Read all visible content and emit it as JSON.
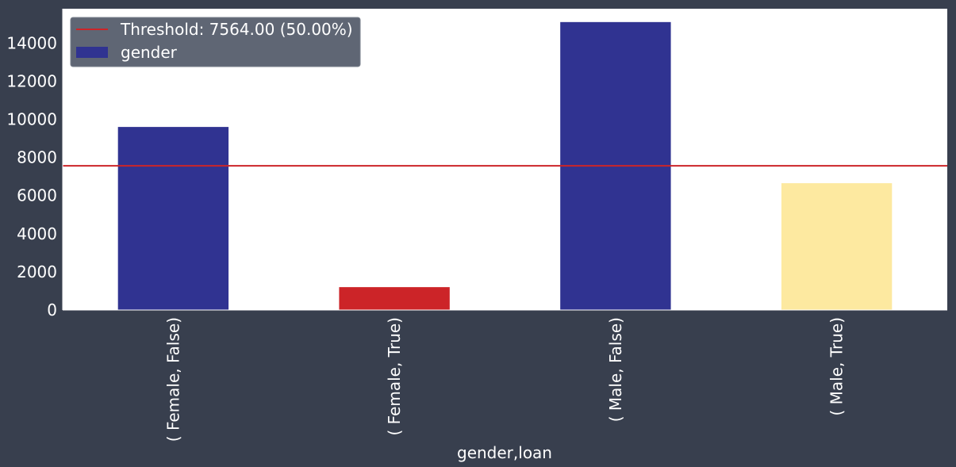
{
  "chart_data": {
    "type": "bar",
    "title": "",
    "xlabel": "gender,loan",
    "ylabel": "",
    "categories": [
      "( Female, False)",
      "( Female, True)",
      "( Male, False)",
      "( Male, True)"
    ],
    "series": [
      {
        "name": "gender",
        "values": [
          9600,
          1200,
          15100,
          6650
        ],
        "colors": [
          "#303391",
          "#cc2428",
          "#303391",
          "#fde9a0"
        ]
      }
    ],
    "ylim": [
      0,
      15800
    ],
    "yticks": [
      0,
      2000,
      4000,
      6000,
      8000,
      10000,
      12000,
      14000
    ],
    "threshold": {
      "value": 7564,
      "label": "Threshold: 7564.00 (50.00%)",
      "color": "#cc2428"
    },
    "legend": {
      "placement": "top-left",
      "entries": [
        {
          "label": "Threshold: 7564.00 (50.00%)",
          "kind": "line",
          "color": "#cc2428"
        },
        {
          "label": "gender",
          "kind": "patch",
          "color": "#303391"
        }
      ]
    },
    "grid": false
  },
  "colors": {
    "background": "#383f4e",
    "plot_background": "#ffffff",
    "text": "#ffffff",
    "legend_background": "#5f6674"
  }
}
